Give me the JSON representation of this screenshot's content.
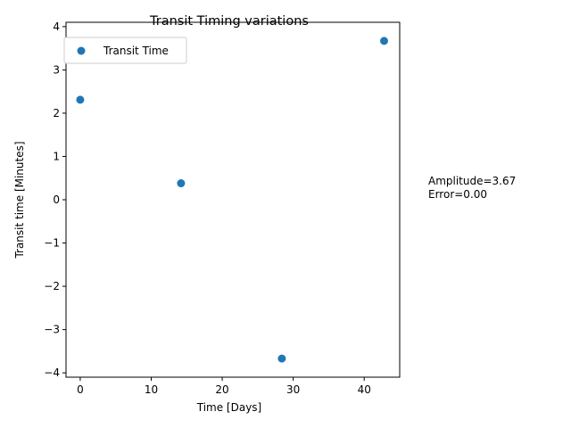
{
  "chart_data": {
    "type": "scatter",
    "title": "Transit Timing variations",
    "xlabel": "Time [Days]",
    "ylabel": "Transit time [Minutes]",
    "xlim": [
      -2,
      45
    ],
    "ylim": [
      -4.1,
      4.1
    ],
    "xticks": [
      0,
      10,
      20,
      30,
      40
    ],
    "xtick_labels": [
      "0",
      "10",
      "20",
      "30",
      "40"
    ],
    "yticks": [
      -4,
      -3,
      -2,
      -1,
      0,
      1,
      2,
      3,
      4
    ],
    "ytick_labels": [
      "−4",
      "−3",
      "−2",
      "−1",
      "0",
      "1",
      "2",
      "3",
      "4"
    ],
    "grid": false,
    "legend_position": "upper-left",
    "series": [
      {
        "name": "Transit Time",
        "color": "#1f77b4",
        "x": [
          0,
          14.2,
          28.4,
          42.8
        ],
        "y": [
          2.31,
          0.38,
          -3.67,
          3.67
        ]
      }
    ],
    "annotations": [
      {
        "lines": [
          "Amplitude=3.67",
          "Error=0.00"
        ]
      }
    ]
  }
}
